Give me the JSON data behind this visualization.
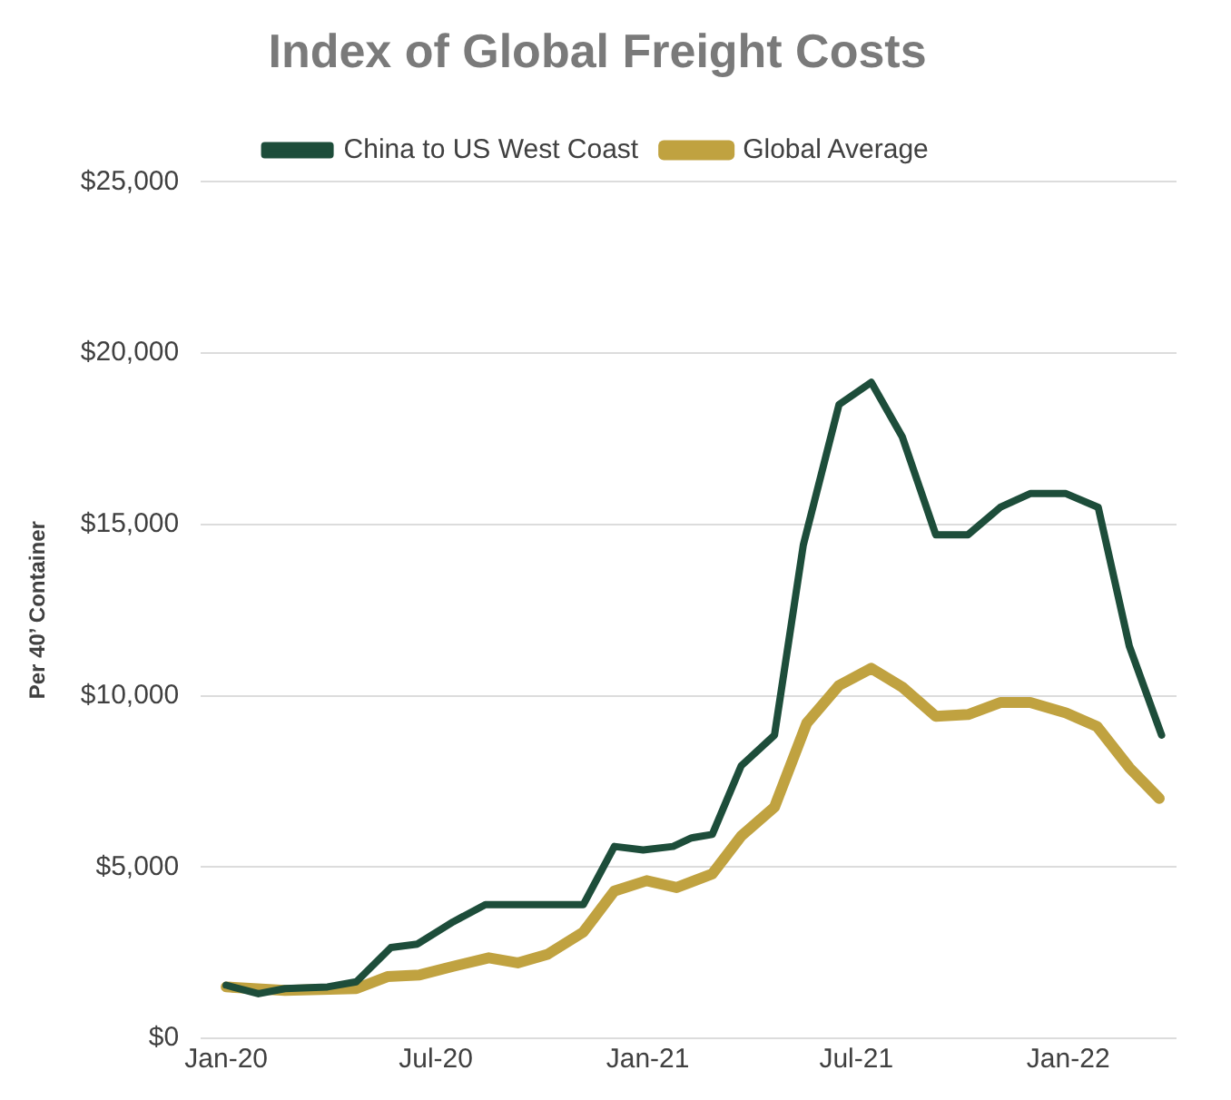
{
  "chart_data": {
    "type": "line",
    "title": "Index of Global Freight Costs",
    "ylabel": "Per 40’ Container",
    "series": [
      {
        "name": "Global Average",
        "color": "#c0a240",
        "x": [
          "2020-01-01",
          "2020-02-21",
          "2020-04-23",
          "2020-05-20",
          "2020-06-17",
          "2020-07-16",
          "2020-08-16",
          "2020-09-10",
          "2020-10-06",
          "2020-11-06",
          "2020-12-03",
          "2020-12-31",
          "2021-01-26",
          "2021-02-26",
          "2021-03-23",
          "2021-04-21",
          "2021-05-19",
          "2021-06-16",
          "2021-07-14",
          "2021-08-10",
          "2021-09-08",
          "2021-10-06",
          "2021-11-03",
          "2021-11-29",
          "2021-12-30",
          "2022-01-26",
          "2022-02-23",
          "2022-03-21"
        ],
        "values": [
          1500,
          1400,
          1450,
          1800,
          1850,
          2100,
          2350,
          2200,
          2450,
          3100,
          4300,
          4600,
          4400,
          4800,
          5900,
          6750,
          9200,
          10300,
          10800,
          10250,
          9400,
          9450,
          9800,
          9800,
          9500,
          9100,
          7900,
          7000
        ]
      },
      {
        "name": "China to US West Coast",
        "color": "#1d4d3a",
        "x": [
          "2020-01-01",
          "2020-01-29",
          "2020-02-21",
          "2020-03-29",
          "2020-04-23",
          "2020-05-23",
          "2020-06-15",
          "2020-07-16",
          "2020-08-13",
          "2020-11-06",
          "2020-12-03",
          "2020-12-28",
          "2021-01-23",
          "2021-02-08",
          "2021-02-26",
          "2021-03-23",
          "2021-04-21",
          "2021-05-16",
          "2021-06-16",
          "2021-07-14",
          "2021-08-10",
          "2021-09-08",
          "2021-10-06",
          "2021-11-03",
          "2021-11-29",
          "2021-12-30",
          "2022-01-27",
          "2022-02-23",
          "2022-03-23"
        ],
        "values": [
          1550,
          1300,
          1450,
          1500,
          1650,
          2650,
          2750,
          3400,
          3900,
          3900,
          5600,
          5500,
          5600,
          5850,
          5950,
          7950,
          8850,
          14400,
          18500,
          19150,
          17550,
          14700,
          14700,
          15500,
          15900,
          15900,
          15500,
          11450,
          8850
        ]
      }
    ],
    "xlim": [
      "2019-12-10",
      "2022-04-05"
    ],
    "xticks": [
      {
        "value": "2020-01-01",
        "label": "Jan-20"
      },
      {
        "value": "2020-07-01",
        "label": "Jul-20"
      },
      {
        "value": "2021-01-01",
        "label": "Jan-21"
      },
      {
        "value": "2021-07-01",
        "label": "Jul-21"
      },
      {
        "value": "2022-01-01",
        "label": "Jan-22"
      }
    ],
    "ylim": [
      0,
      25000
    ],
    "yticks": [
      {
        "value": 0,
        "label": "$0"
      },
      {
        "value": 5000,
        "label": "$5,000"
      },
      {
        "value": 10000,
        "label": "$10,000"
      },
      {
        "value": 15000,
        "label": "$15,000"
      },
      {
        "value": 20000,
        "label": "$20,000"
      },
      {
        "value": 25000,
        "label": "$25,000"
      }
    ],
    "grid": "y",
    "legend": "top",
    "marker": "none",
    "line_style": "solid"
  }
}
